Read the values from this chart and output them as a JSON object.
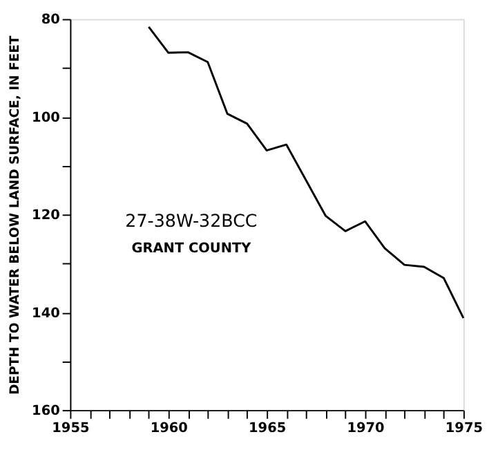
{
  "chart_data": {
    "type": "line",
    "ylabel": "DEPTH TO WATER BELOW LAND SURFACE, IN FEET",
    "x": [
      1959,
      1960,
      1961,
      1962,
      1963,
      1964,
      1965,
      1966,
      1968,
      1969,
      1970,
      1971,
      1972,
      1973,
      1974,
      1975
    ],
    "series": [
      {
        "color": "#000000",
        "values": [
          81.6,
          86.9,
          86.8,
          88.8,
          99.4,
          101.4,
          106.9,
          105.7,
          120.3,
          123.4,
          121.4,
          126.9,
          130.3,
          130.7,
          133.0,
          141.2
        ]
      }
    ],
    "xlim": [
      1955,
      1975
    ],
    "ylim": [
      160,
      80
    ],
    "xticks": [
      1955,
      {
        "value": 1956,
        "label": null
      },
      {
        "value": 1957,
        "label": null
      },
      {
        "value": 1958,
        "label": null
      },
      {
        "value": 1959,
        "label": null
      },
      1960,
      {
        "value": 1961,
        "label": null
      },
      {
        "value": 1962,
        "label": null
      },
      {
        "value": 1963,
        "label": null
      },
      {
        "value": 1964,
        "label": null
      },
      1965,
      {
        "value": 1966,
        "label": null
      },
      {
        "value": 1967,
        "label": null
      },
      {
        "value": 1968,
        "label": null
      },
      {
        "value": 1969,
        "label": null
      },
      1970,
      {
        "value": 1971,
        "label": null
      },
      {
        "value": 1972,
        "label": null
      },
      {
        "value": 1973,
        "label": null
      },
      {
        "value": 1974,
        "label": null
      },
      1975
    ],
    "yticks": [
      80,
      {
        "value": 90,
        "label": null
      },
      100,
      {
        "value": 110,
        "label": null
      },
      120,
      {
        "value": 130,
        "label": null
      },
      140,
      {
        "value": 150,
        "label": null
      },
      160
    ],
    "annotations": [
      "27-38W-32BCC",
      "GRANT COUNTY"
    ],
    "grid": false,
    "marker": "none",
    "line_style": "solid"
  }
}
